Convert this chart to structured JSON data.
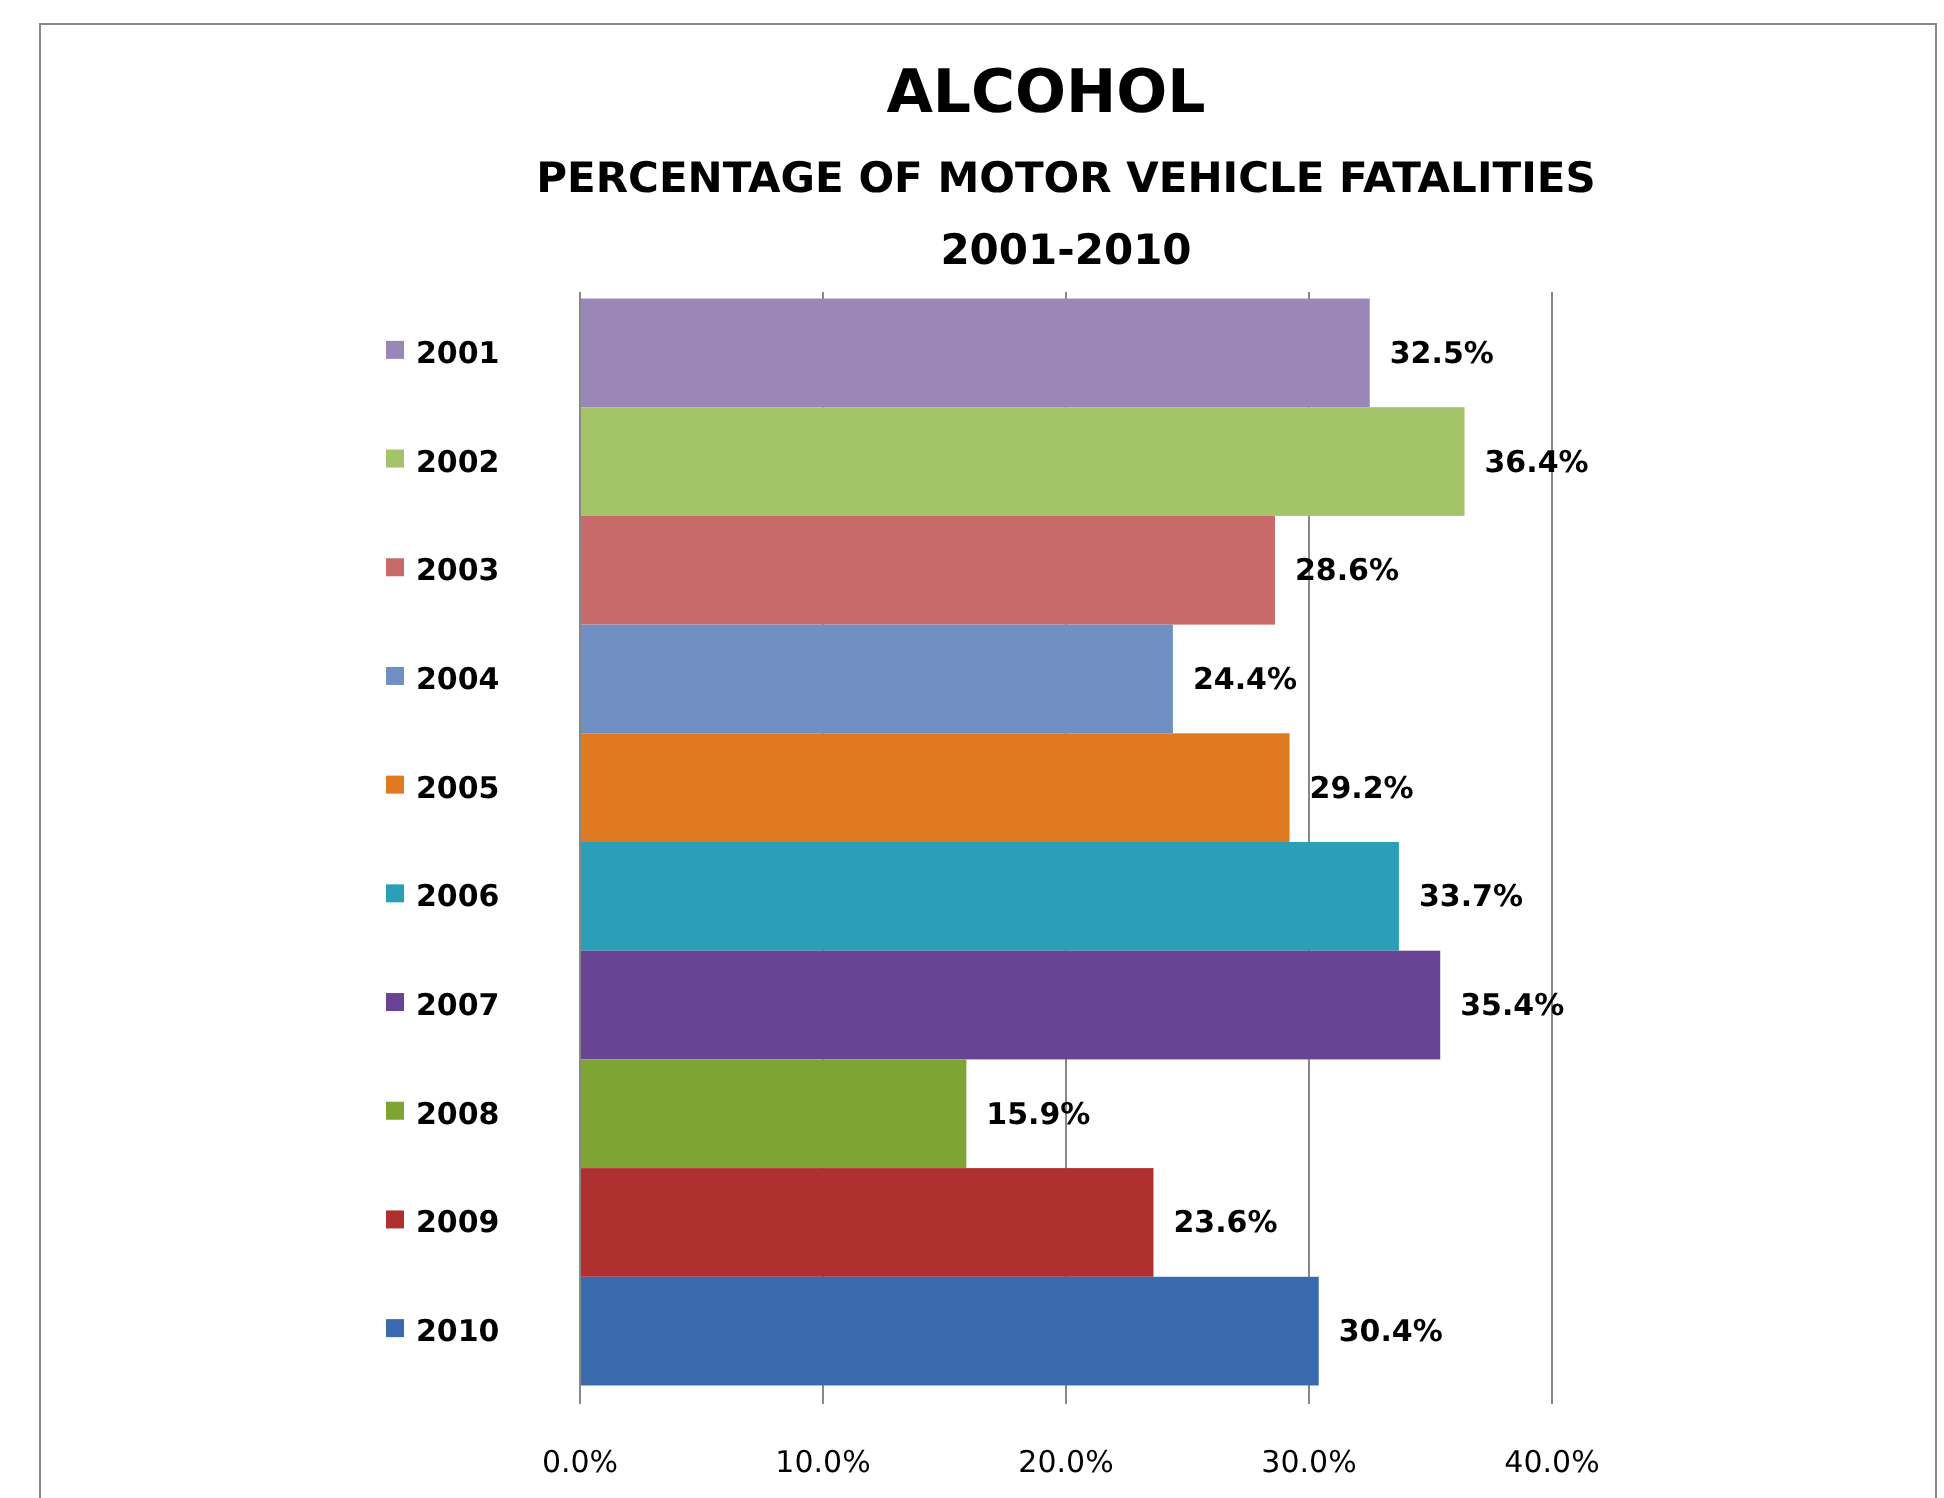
{
  "chart_data": {
    "type": "bar",
    "orientation": "horizontal",
    "title": "ALCOHOL",
    "subtitle": "PERCENTAGE OF MOTOR VEHICLE FATALITIES 2001-2010",
    "categories": [
      "2001",
      "2002",
      "2003",
      "2004",
      "2005",
      "2006",
      "2007",
      "2008",
      "2009",
      "2010"
    ],
    "values": [
      32.5,
      36.4,
      28.6,
      24.4,
      29.2,
      33.7,
      35.4,
      15.9,
      23.6,
      30.4
    ],
    "value_labels": [
      "32.5%",
      "36.4%",
      "28.6%",
      "24.4%",
      "29.2%",
      "33.7%",
      "35.4%",
      "15.9%",
      "23.6%",
      "30.4%"
    ],
    "colors": [
      "#9b86b8",
      "#a4c46a",
      "#c96a6a",
      "#7090c4",
      "#e07a20",
      "#2b9fb8",
      "#6a4494",
      "#7ea434",
      "#b03030",
      "#3a6aae"
    ],
    "xlim": [
      0,
      40
    ],
    "xticks": [
      {
        "value": 0,
        "label": "0.0%"
      },
      {
        "value": 10,
        "label": "10.0%"
      },
      {
        "value": 20,
        "label": "20.0%"
      },
      {
        "value": 30,
        "label": "30.0%"
      },
      {
        "value": 40,
        "label": "40.0%"
      }
    ],
    "grid": "x"
  }
}
